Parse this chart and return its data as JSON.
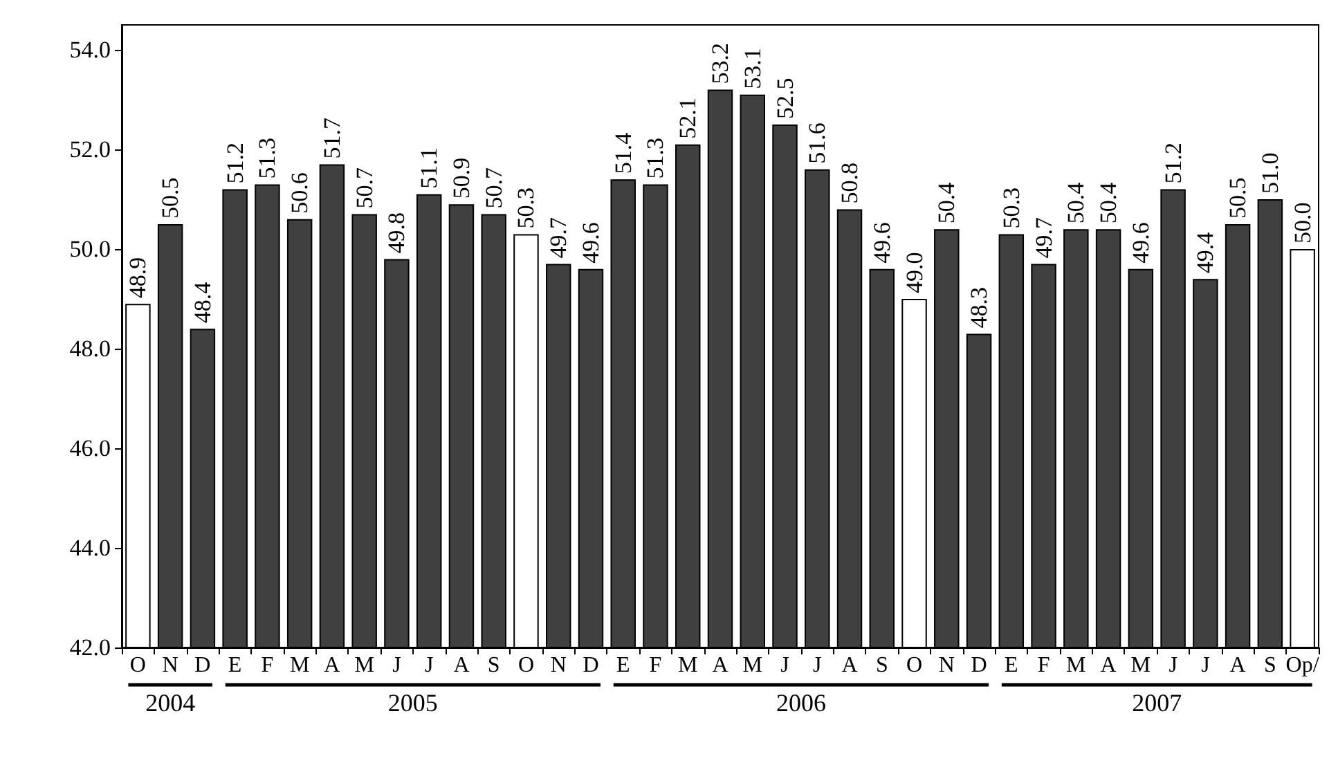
{
  "chart_data": {
    "type": "bar",
    "categories": [
      "O",
      "N",
      "D",
      "E",
      "F",
      "M",
      "A",
      "M",
      "J",
      "J",
      "A",
      "S",
      "O",
      "N",
      "D",
      "E",
      "F",
      "M",
      "A",
      "M",
      "J",
      "J",
      "A",
      "S",
      "O",
      "N",
      "D",
      "E",
      "F",
      "M",
      "A",
      "M",
      "J",
      "J",
      "A",
      "S",
      "Op/"
    ],
    "values": [
      48.9,
      50.5,
      48.4,
      51.2,
      51.3,
      50.6,
      51.7,
      50.7,
      49.8,
      51.1,
      50.9,
      50.7,
      50.3,
      49.7,
      49.6,
      51.4,
      51.3,
      52.1,
      53.2,
      53.1,
      52.5,
      51.6,
      50.8,
      49.6,
      49.0,
      50.4,
      48.3,
      50.3,
      49.7,
      50.4,
      50.4,
      49.6,
      51.2,
      49.4,
      50.5,
      51.0,
      50.0
    ],
    "value_labels": [
      "48.9",
      "50.5",
      "48.4",
      "51.2",
      "51.3",
      "50.6",
      "51.7",
      "50.7",
      "49.8",
      "51.1",
      "50.9",
      "50.7",
      "50.3",
      "49.7",
      "49.6",
      "51.4",
      "51.3",
      "52.1",
      "53.2",
      "53.1",
      "52.5",
      "51.6",
      "50.8",
      "49.6",
      "49.0",
      "50.4",
      "48.3",
      "50.3",
      "49.7",
      "50.4",
      "50.4",
      "49.6",
      "51.2",
      "49.4",
      "50.5",
      "51.0",
      "50.0"
    ],
    "colors": [
      "#ffffff",
      "#404040",
      "#404040",
      "#404040",
      "#404040",
      "#404040",
      "#404040",
      "#404040",
      "#404040",
      "#404040",
      "#404040",
      "#404040",
      "#ffffff",
      "#404040",
      "#404040",
      "#404040",
      "#404040",
      "#404040",
      "#404040",
      "#404040",
      "#404040",
      "#404040",
      "#404040",
      "#404040",
      "#ffffff",
      "#404040",
      "#404040",
      "#404040",
      "#404040",
      "#404040",
      "#404040",
      "#404040",
      "#404040",
      "#404040",
      "#404040",
      "#404040",
      "#ffffff"
    ],
    "ylim": [
      42,
      54.5
    ],
    "yticks": [
      {
        "value": 42,
        "label": "42.0"
      },
      {
        "value": 44,
        "label": "44.0"
      },
      {
        "value": 46,
        "label": "46.0"
      },
      {
        "value": 48,
        "label": "48.0"
      },
      {
        "value": 50,
        "label": "50.0"
      },
      {
        "value": 52,
        "label": "52.0"
      },
      {
        "value": 54,
        "label": "54.0"
      }
    ],
    "grid": false,
    "annotations": [
      "2004",
      "2005",
      "2006",
      "2007"
    ]
  }
}
